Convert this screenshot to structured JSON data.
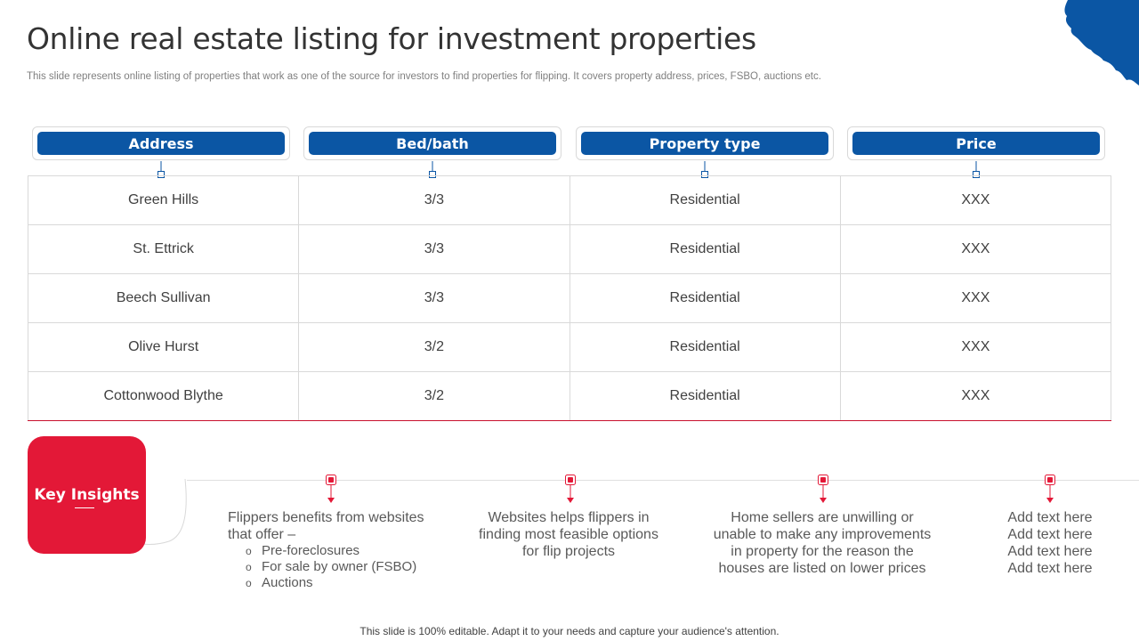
{
  "title": "Online real estate listing for investment properties",
  "subtitle": "This slide represents online listing of properties that work as one of the source for investors to find properties for flipping. It covers property address, prices, FSBO, auctions etc.",
  "colors": {
    "header_blue": "#0b56a4",
    "accent_red": "#e31837"
  },
  "table": {
    "headers": [
      "Address",
      "Bed/bath",
      "Property type",
      "Price"
    ],
    "rows": [
      [
        "Green Hills",
        "3/3",
        "Residential",
        "XXX"
      ],
      [
        "St. Ettrick",
        "3/3",
        "Residential",
        "XXX"
      ],
      [
        "Beech Sullivan",
        "3/3",
        "Residential",
        "XXX"
      ],
      [
        "Olive Hurst",
        "3/2",
        "Residential",
        "XXX"
      ],
      [
        "Cottonwood Blythe",
        "3/2",
        "Residential",
        "XXX"
      ]
    ]
  },
  "insights": {
    "label": "Key Insights",
    "items": [
      {
        "text": "Flippers benefits from websites that offer –",
        "bullets": [
          "Pre-foreclosures",
          "For sale by owner (FSBO)",
          "Auctions"
        ]
      },
      {
        "text": "Websites helps flippers in finding most feasible options for flip projects"
      },
      {
        "text": "Home sellers are unwilling or unable to make any improvements in property for the reason the houses are listed on lower prices"
      },
      {
        "lines": [
          "Add text here",
          "Add text here",
          "Add text here",
          "Add text here"
        ]
      }
    ]
  },
  "footer": "This slide is 100% editable. Adapt it to your needs and capture your audience's attention."
}
